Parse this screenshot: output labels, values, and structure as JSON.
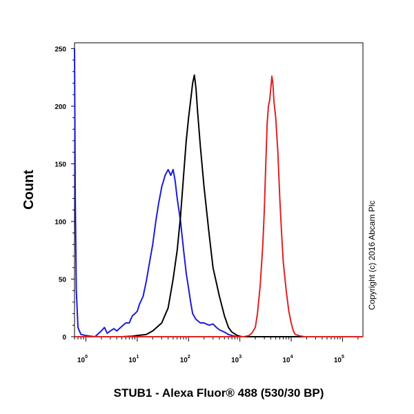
{
  "chart_data": {
    "type": "line",
    "xlabel": "STUB1 - Alexa Fluor® 488 (530/30 BP)",
    "ylabel": "Count",
    "x_scale": "log",
    "xlim": [
      0.6,
      250000
    ],
    "ylim": [
      0,
      255
    ],
    "y_ticks": [
      "0",
      "50",
      "100",
      "150",
      "200",
      "250"
    ],
    "y_tick_values": [
      0,
      50,
      100,
      150,
      200,
      250
    ],
    "x_ticks": [
      {
        "base": "10",
        "exp": "0",
        "value": 1
      },
      {
        "base": "10",
        "exp": "1",
        "value": 10
      },
      {
        "base": "10",
        "exp": "2",
        "value": 100
      },
      {
        "base": "10",
        "exp": "3",
        "value": 1000
      },
      {
        "base": "10",
        "exp": "4",
        "value": 10000
      },
      {
        "base": "10",
        "exp": "5",
        "value": 100000
      }
    ],
    "copyright": "Copyright (c) 2016 Abcam Plc",
    "series": [
      {
        "color": "#1a1adb",
        "points": [
          [
            0.6,
            250
          ],
          [
            0.62,
            120
          ],
          [
            0.65,
            40
          ],
          [
            0.7,
            8
          ],
          [
            0.8,
            2
          ],
          [
            1,
            1
          ],
          [
            1.5,
            0
          ],
          [
            2,
            5
          ],
          [
            2.3,
            8
          ],
          [
            2.6,
            3
          ],
          [
            3,
            5
          ],
          [
            3.5,
            7
          ],
          [
            4,
            5
          ],
          [
            5,
            9
          ],
          [
            6,
            12
          ],
          [
            7,
            12
          ],
          [
            8,
            18
          ],
          [
            9,
            20
          ],
          [
            10,
            22
          ],
          [
            11,
            28
          ],
          [
            13,
            35
          ],
          [
            15,
            48
          ],
          [
            17,
            62
          ],
          [
            20,
            80
          ],
          [
            23,
            100
          ],
          [
            26,
            115
          ],
          [
            30,
            130
          ],
          [
            35,
            140
          ],
          [
            40,
            145
          ],
          [
            45,
            140
          ],
          [
            50,
            145
          ],
          [
            55,
            135
          ],
          [
            60,
            120
          ],
          [
            70,
            100
          ],
          [
            80,
            75
          ],
          [
            90,
            55
          ],
          [
            100,
            42
          ],
          [
            110,
            30
          ],
          [
            120,
            20
          ],
          [
            140,
            15
          ],
          [
            170,
            12
          ],
          [
            200,
            12
          ],
          [
            250,
            10
          ],
          [
            300,
            11
          ],
          [
            350,
            8
          ],
          [
            400,
            6
          ],
          [
            500,
            4
          ],
          [
            600,
            2
          ],
          [
            700,
            1
          ],
          [
            900,
            0
          ],
          [
            250000,
            0
          ]
        ]
      },
      {
        "color": "#000000",
        "points": [
          [
            0.6,
            0
          ],
          [
            5,
            0
          ],
          [
            8,
            0.5
          ],
          [
            10,
            1
          ],
          [
            15,
            2
          ],
          [
            20,
            5
          ],
          [
            30,
            12
          ],
          [
            40,
            25
          ],
          [
            50,
            50
          ],
          [
            60,
            75
          ],
          [
            70,
            105
          ],
          [
            80,
            140
          ],
          [
            90,
            170
          ],
          [
            100,
            190
          ],
          [
            110,
            205
          ],
          [
            120,
            220
          ],
          [
            130,
            227
          ],
          [
            140,
            215
          ],
          [
            150,
            195
          ],
          [
            170,
            165
          ],
          [
            200,
            130
          ],
          [
            250,
            90
          ],
          [
            300,
            60
          ],
          [
            400,
            35
          ],
          [
            500,
            18
          ],
          [
            600,
            8
          ],
          [
            700,
            4
          ],
          [
            900,
            1
          ],
          [
            1100,
            0
          ],
          [
            250000,
            0
          ]
        ]
      },
      {
        "color": "#e02020",
        "points": [
          [
            0.6,
            0
          ],
          [
            1200,
            0
          ],
          [
            1500,
            1
          ],
          [
            1700,
            3
          ],
          [
            2000,
            8
          ],
          [
            2200,
            20
          ],
          [
            2500,
            45
          ],
          [
            2800,
            80
          ],
          [
            3000,
            110
          ],
          [
            3200,
            150
          ],
          [
            3400,
            185
          ],
          [
            3600,
            200
          ],
          [
            3800,
            205
          ],
          [
            4000,
            215
          ],
          [
            4200,
            226
          ],
          [
            4400,
            220
          ],
          [
            4600,
            205
          ],
          [
            5000,
            190
          ],
          [
            5500,
            160
          ],
          [
            6000,
            120
          ],
          [
            6500,
            90
          ],
          [
            7000,
            65
          ],
          [
            8000,
            40
          ],
          [
            9000,
            22
          ],
          [
            10000,
            12
          ],
          [
            11000,
            5
          ],
          [
            12000,
            2
          ],
          [
            14000,
            1
          ],
          [
            18000,
            0
          ],
          [
            250000,
            0
          ]
        ]
      }
    ]
  }
}
